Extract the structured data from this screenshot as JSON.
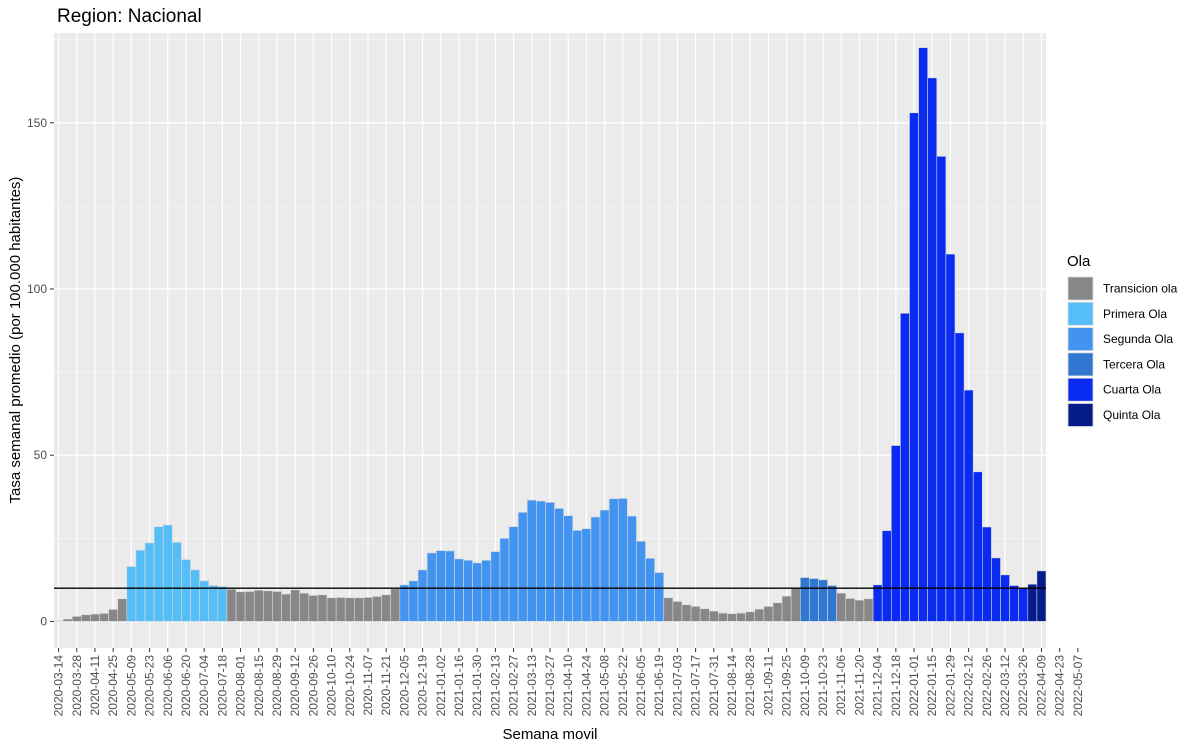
{
  "chart_data": {
    "type": "bar",
    "title": "Region: Nacional",
    "xlabel": "Semana movil",
    "ylabel": "Tasa semanal promedio (por 100.000 habitantes)",
    "ylim": [
      -8,
      177
    ],
    "yticks": [
      0,
      50,
      100,
      150
    ],
    "threshold": 10,
    "grid": true,
    "legend_position": "right",
    "legend_title": "Ola",
    "legend": [
      {
        "key": "T",
        "label": "Transicion ola",
        "color": "#878787"
      },
      {
        "key": "P",
        "label": "Primera Ola",
        "color": "#56BEF6"
      },
      {
        "key": "S",
        "label": "Segunda Ola",
        "color": "#4294F0"
      },
      {
        "key": "Te",
        "label": "Tercera Ola",
        "color": "#2F77D0"
      },
      {
        "key": "C",
        "label": "Cuarta Ola",
        "color": "#0A2CF2"
      },
      {
        "key": "Q",
        "label": "Quinta Ola",
        "color": "#061C8A"
      }
    ],
    "x_tick_labels": [
      "2020-03-14",
      "2020-03-28",
      "2020-04-11",
      "2020-04-25",
      "2020-05-09",
      "2020-05-23",
      "2020-06-06",
      "2020-06-20",
      "2020-07-04",
      "2020-07-18",
      "2020-08-01",
      "2020-08-15",
      "2020-08-29",
      "2020-09-12",
      "2020-09-26",
      "2020-10-10",
      "2020-10-24",
      "2020-11-07",
      "2020-11-21",
      "2020-12-05",
      "2020-12-19",
      "2021-01-02",
      "2021-01-16",
      "2021-01-30",
      "2021-02-13",
      "2021-02-27",
      "2021-03-13",
      "2021-03-27",
      "2021-04-10",
      "2021-04-24",
      "2021-05-08",
      "2021-05-22",
      "2021-06-05",
      "2021-06-19",
      "2021-07-03",
      "2021-07-17",
      "2021-07-31",
      "2021-08-14",
      "2021-08-28",
      "2021-09-11",
      "2021-09-25",
      "2021-10-09",
      "2021-10-23",
      "2021-11-06",
      "2021-11-20",
      "2021-12-04",
      "2021-12-18",
      "2022-01-01",
      "2022-01-15",
      "2022-01-29",
      "2022-02-12",
      "2022-02-26",
      "2022-03-12",
      "2022-03-26",
      "2022-04-09",
      "2022-04-23",
      "2022-05-07"
    ],
    "start_date": "2020-03-14",
    "week_step_days": 7,
    "values": [
      0.2,
      0.7,
      1.5,
      2.0,
      2.2,
      2.4,
      3.6,
      6.8,
      16.5,
      21.4,
      23.6,
      28.5,
      29.0,
      23.8,
      18.6,
      15.5,
      12.2,
      10.8,
      10.5,
      9.7,
      8.9,
      9.0,
      9.4,
      9.2,
      9.0,
      8.2,
      9.5,
      8.5,
      7.8,
      8.0,
      7.1,
      7.2,
      7.1,
      7.1,
      7.2,
      7.5,
      8.0,
      9.8,
      11.0,
      12.2,
      15.5,
      20.6,
      21.3,
      21.2,
      18.8,
      18.4,
      17.6,
      18.4,
      21.0,
      25.0,
      28.5,
      32.8,
      36.5,
      36.2,
      35.8,
      34.0,
      31.8,
      27.4,
      27.9,
      31.4,
      33.5,
      36.9,
      37.0,
      31.7,
      24.1,
      19.0,
      14.7,
      7.1,
      6.0,
      5.0,
      4.5,
      3.8,
      3.1,
      2.5,
      2.3,
      2.5,
      2.9,
      3.7,
      4.5,
      5.6,
      7.6,
      10.0,
      13.2,
      12.9,
      12.5,
      10.8,
      8.5,
      6.9,
      6.4,
      6.8,
      11.0,
      27.3,
      52.9,
      92.7,
      153.0,
      172.6,
      163.5,
      139.9,
      110.5,
      86.8,
      69.6,
      45.0,
      28.4,
      19.1,
      14.0,
      10.8,
      10.0,
      11.2,
      15.2
    ],
    "groups": [
      "T",
      "T",
      "T",
      "T",
      "T",
      "T",
      "T",
      "T",
      "P",
      "P",
      "P",
      "P",
      "P",
      "P",
      "P",
      "P",
      "P",
      "P",
      "P",
      "T",
      "T",
      "T",
      "T",
      "T",
      "T",
      "T",
      "T",
      "T",
      "T",
      "T",
      "T",
      "T",
      "T",
      "T",
      "T",
      "T",
      "T",
      "T",
      "S",
      "S",
      "S",
      "S",
      "S",
      "S",
      "S",
      "S",
      "S",
      "S",
      "S",
      "S",
      "S",
      "S",
      "S",
      "S",
      "S",
      "S",
      "S",
      "S",
      "S",
      "S",
      "S",
      "S",
      "S",
      "S",
      "S",
      "S",
      "S",
      "T",
      "T",
      "T",
      "T",
      "T",
      "T",
      "T",
      "T",
      "T",
      "T",
      "T",
      "T",
      "T",
      "T",
      "T",
      "Te",
      "Te",
      "Te",
      "Te",
      "T",
      "T",
      "T",
      "T",
      "C",
      "C",
      "C",
      "C",
      "C",
      "C",
      "C",
      "C",
      "C",
      "C",
      "C",
      "C",
      "C",
      "C",
      "C",
      "C",
      "C",
      "Q",
      "Q"
    ]
  }
}
